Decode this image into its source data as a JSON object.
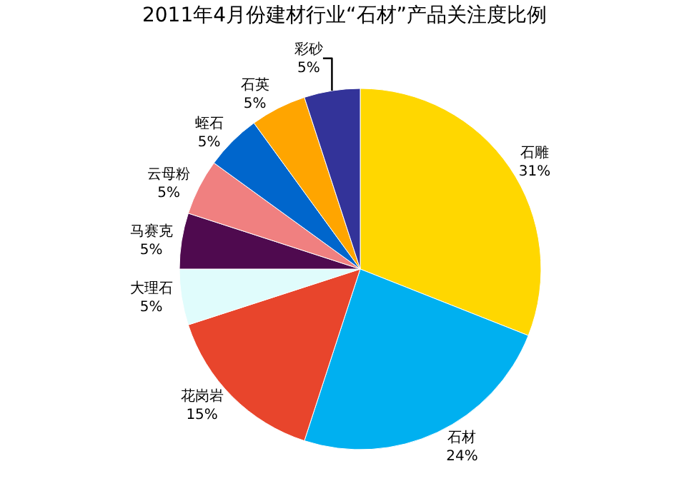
{
  "chart_data": {
    "type": "pie",
    "title": "2011年4月份建材行业“石材”产品关注度比例",
    "categories": [
      "石雕",
      "石材",
      "花岗岩",
      "大理石",
      "马赛克",
      "云母粉",
      "蛭石",
      "石英",
      "彩砂"
    ],
    "values": [
      31,
      24,
      15,
      5,
      5,
      5,
      5,
      5,
      5
    ],
    "value_labels": [
      "31%",
      "24%",
      "15%",
      "5%",
      "5%",
      "5%",
      "5%",
      "5%",
      "5%"
    ],
    "colors": [
      "#ffd700",
      "#00b0f0",
      "#e8452c",
      "#e0fcfc",
      "#4f0a4f",
      "#f08080",
      "#0066cc",
      "#ffa500",
      "#333399"
    ],
    "legend": false
  }
}
